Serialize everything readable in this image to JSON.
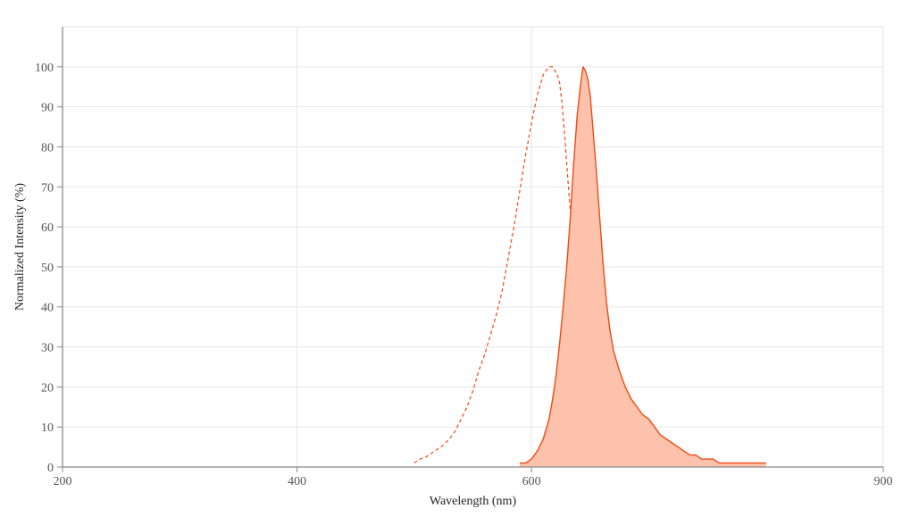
{
  "chart_data": {
    "type": "area",
    "title": "",
    "xlabel": "Wavelength (nm)",
    "ylabel": "Normalized Intensity (%)",
    "xlim": [
      200,
      900
    ],
    "ylim": [
      0,
      110
    ],
    "x_ticks": [
      200,
      400,
      600,
      900
    ],
    "y_ticks": [
      0,
      10,
      20,
      30,
      40,
      50,
      60,
      70,
      80,
      90,
      100
    ],
    "grid": true,
    "legend": "none",
    "series": [
      {
        "style": "dashed-line",
        "color": "#f04a14",
        "x": [
          500,
          505,
          510,
          515,
          520,
          525,
          530,
          535,
          540,
          545,
          550,
          555,
          560,
          565,
          570,
          575,
          580,
          585,
          590,
          595,
          600,
          605,
          610,
          615,
          618,
          620,
          622,
          624,
          626,
          628,
          630,
          632,
          634,
          636,
          638,
          640,
          642,
          644,
          646,
          648,
          650,
          652,
          654,
          656,
          658,
          660,
          662,
          664,
          666,
          668
        ],
        "y": [
          1,
          2,
          2.5,
          3.5,
          4.5,
          5.5,
          7,
          9,
          12,
          15,
          19,
          24,
          28,
          33,
          38,
          44,
          52,
          60,
          69,
          78,
          86,
          93,
          98,
          100,
          100,
          99,
          98,
          96,
          91,
          84,
          76,
          68,
          61,
          56,
          52,
          48,
          42,
          36,
          30,
          26,
          22,
          19,
          16,
          14,
          13,
          13,
          13,
          13,
          13,
          13
        ]
      },
      {
        "style": "filled-area",
        "color": "#f04a14",
        "fill": "#fcc2ac",
        "x": [
          590,
          595,
          600,
          605,
          610,
          615,
          618,
          621,
          624,
          627,
          630,
          633,
          636,
          639,
          642,
          644,
          646,
          648,
          650,
          652,
          655,
          658,
          661,
          664,
          667,
          670,
          675,
          680,
          685,
          690,
          695,
          700,
          705,
          710,
          715,
          720,
          725,
          730,
          735,
          740,
          745,
          750,
          755,
          760,
          765,
          770,
          780,
          790,
          800
        ],
        "y": [
          1,
          1,
          2,
          4,
          7,
          12,
          17,
          23,
          31,
          40,
          50,
          62,
          76,
          88,
          96,
          100,
          99,
          97,
          93,
          86,
          75,
          63,
          51,
          41,
          34,
          29,
          24,
          20,
          17,
          15,
          13,
          12,
          10,
          8,
          7,
          6,
          5,
          4,
          3,
          3,
          2,
          2,
          2,
          1,
          1,
          1,
          1,
          1,
          1
        ]
      }
    ]
  }
}
